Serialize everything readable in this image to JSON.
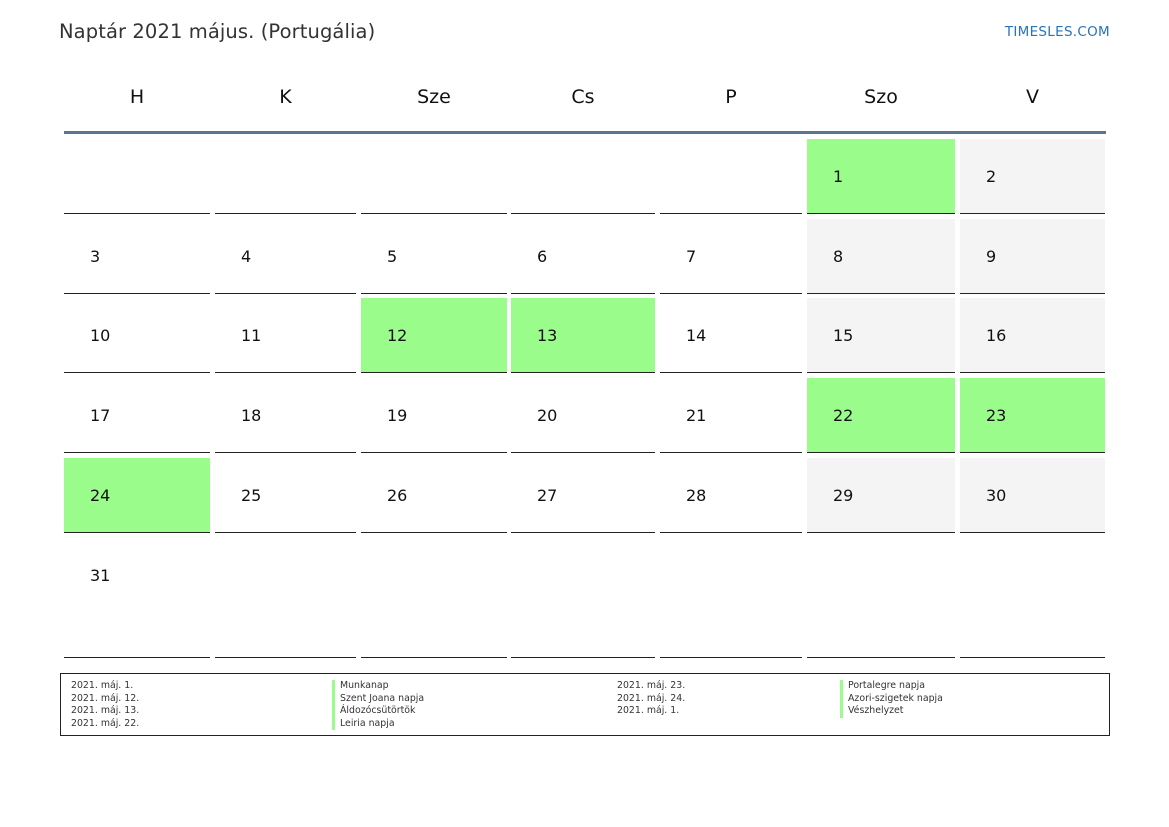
{
  "title": "Naptár 2021 május. (Portugália)",
  "brand": "TIMESLES.COM",
  "colors": {
    "holiday": "#9afc8a",
    "weekend": "#f4f4f4",
    "header_rule": "#5a7594",
    "brand": "#2a73b8"
  },
  "weekdays": [
    "H",
    "K",
    "Sze",
    "Cs",
    "P",
    "Szo",
    "V"
  ],
  "weeks": [
    [
      null,
      null,
      null,
      null,
      null,
      1,
      2
    ],
    [
      3,
      4,
      5,
      6,
      7,
      8,
      9
    ],
    [
      10,
      11,
      12,
      13,
      14,
      15,
      16
    ],
    [
      17,
      18,
      19,
      20,
      21,
      22,
      23
    ],
    [
      24,
      25,
      26,
      27,
      28,
      29,
      30
    ],
    [
      31,
      null,
      null,
      null,
      null,
      null,
      null
    ]
  ],
  "highlighted_days": [
    1,
    12,
    13,
    22,
    23,
    24
  ],
  "legend": {
    "left": [
      {
        "date": "2021. máj. 1.",
        "name": "Munkanap"
      },
      {
        "date": "2021. máj. 12.",
        "name": "Szent Joana napja"
      },
      {
        "date": "2021. máj. 13.",
        "name": "Áldozócsütörtök"
      },
      {
        "date": "2021. máj. 22.",
        "name": "Leiria napja"
      }
    ],
    "right": [
      {
        "date": "2021. máj. 23.",
        "name": "Portalegre napja"
      },
      {
        "date": "2021. máj. 24.",
        "name": "Azori-szigetek napja"
      },
      {
        "date": "2021. máj. 1.",
        "name": "Vészhelyzet"
      }
    ]
  }
}
